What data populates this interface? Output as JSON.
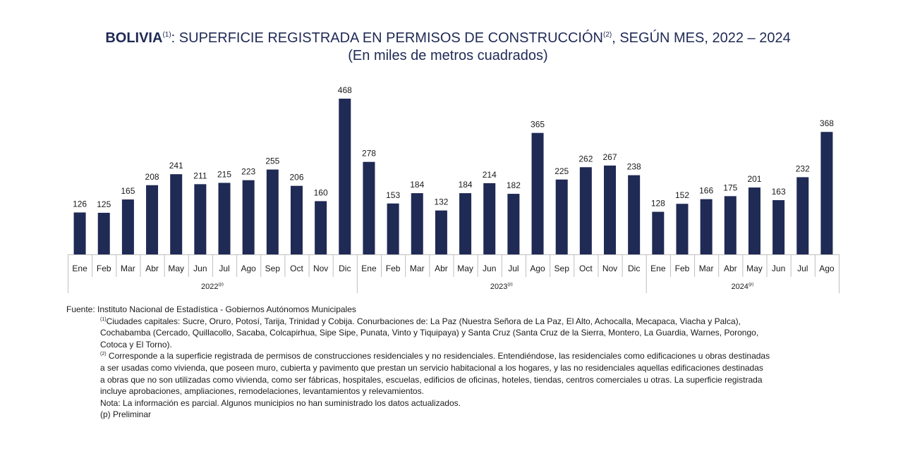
{
  "colors": {
    "bar": "#1f2a55",
    "axis": "#bfbfbf",
    "title": "#1f2a55"
  },
  "header": {
    "title_bold": "BOLIVIA",
    "title_sup1": "(1)",
    "title_mid": ": SUPERFICIE REGISTRADA EN PERMISOS DE CONSTRUCCIÓN",
    "title_sup2": "(2)",
    "title_end": ", SEGÚN MES, 2022 – 2024",
    "subtitle": "(En miles de metros cuadrados)"
  },
  "chart_data": {
    "type": "bar",
    "title": "BOLIVIA(1): SUPERFICIE REGISTRADA EN PERMISOS DE CONSTRUCCIÓN(2), SEGÚN MES, 2022 – 2024",
    "subtitle": "(En miles de metros cuadrados)",
    "groups": [
      {
        "name": "2022",
        "sup": "(p)",
        "categories": [
          "Ene",
          "Feb",
          "Mar",
          "Abr",
          "May",
          "Jun",
          "Jul",
          "Ago",
          "Sep",
          "Oct",
          "Nov",
          "Dic"
        ],
        "values": [
          126,
          125,
          165,
          208,
          241,
          211,
          215,
          223,
          255,
          206,
          160,
          468
        ]
      },
      {
        "name": "2023",
        "sup": "(p)",
        "categories": [
          "Ene",
          "Feb",
          "Mar",
          "Abr",
          "May",
          "Jun",
          "Jul",
          "Ago",
          "Sep",
          "Oct",
          "Nov",
          "Dic"
        ],
        "values": [
          278,
          153,
          184,
          132,
          184,
          214,
          182,
          365,
          225,
          262,
          267,
          238
        ]
      },
      {
        "name": "2024",
        "sup": "(p)",
        "categories": [
          "Ene",
          "Feb",
          "Mar",
          "Abr",
          "May",
          "Jun",
          "Jul",
          "Ago"
        ],
        "values": [
          128,
          152,
          166,
          175,
          201,
          163,
          232,
          368
        ]
      }
    ],
    "ylim": [
      0,
      468
    ],
    "grid": false,
    "data_labels": true
  },
  "notes": {
    "source": "Fuente: Instituto Nacional de Estadística - Gobiernos Autónomos Municipales",
    "note1_sup": "(1)",
    "note1_lines": [
      "Ciudades capitales: Sucre, Oruro, Potosí, Tarija, Trinidad y Cobija. Conurbaciones de: La Paz (Nuestra Señora de La Paz, El Alto, Achocalla, Mecapaca, Viacha y Palca),",
      "Cochabamba (Cercado, Quillacollo, Sacaba, Colcapirhua, Sipe Sipe, Punata, Vinto y Tiquipaya) y Santa Cruz (Santa Cruz de la Sierra, Montero, La Guardia, Warnes, Porongo,",
      "Cotoca y El Torno)."
    ],
    "note2_sup": "(2)",
    "note2_lines": [
      "Corresponde a la superficie registrada de permisos de construcciones residenciales y no residenciales. Entendiéndose, las residenciales como edificaciones u obras destinadas",
      "a ser usadas como vivienda, que poseen muro, cubierta y pavimento que prestan un servicio habitacional a los hogares, y las no residenciales aquellas edificaciones destinadas",
      "a obras que no son utilizadas como vivienda, como ser fábricas, hospitales, escuelas, edificios de oficinas, hoteles, tiendas, centros comerciales u otras. La superficie registrada",
      "incluye aprobaciones, ampliaciones, remodelaciones, levantamientos y relevamientos."
    ],
    "nota": "Nota: La información es parcial. Algunos municipios no han suministrado los datos actualizados.",
    "preliminar": "(p) Preliminar"
  }
}
